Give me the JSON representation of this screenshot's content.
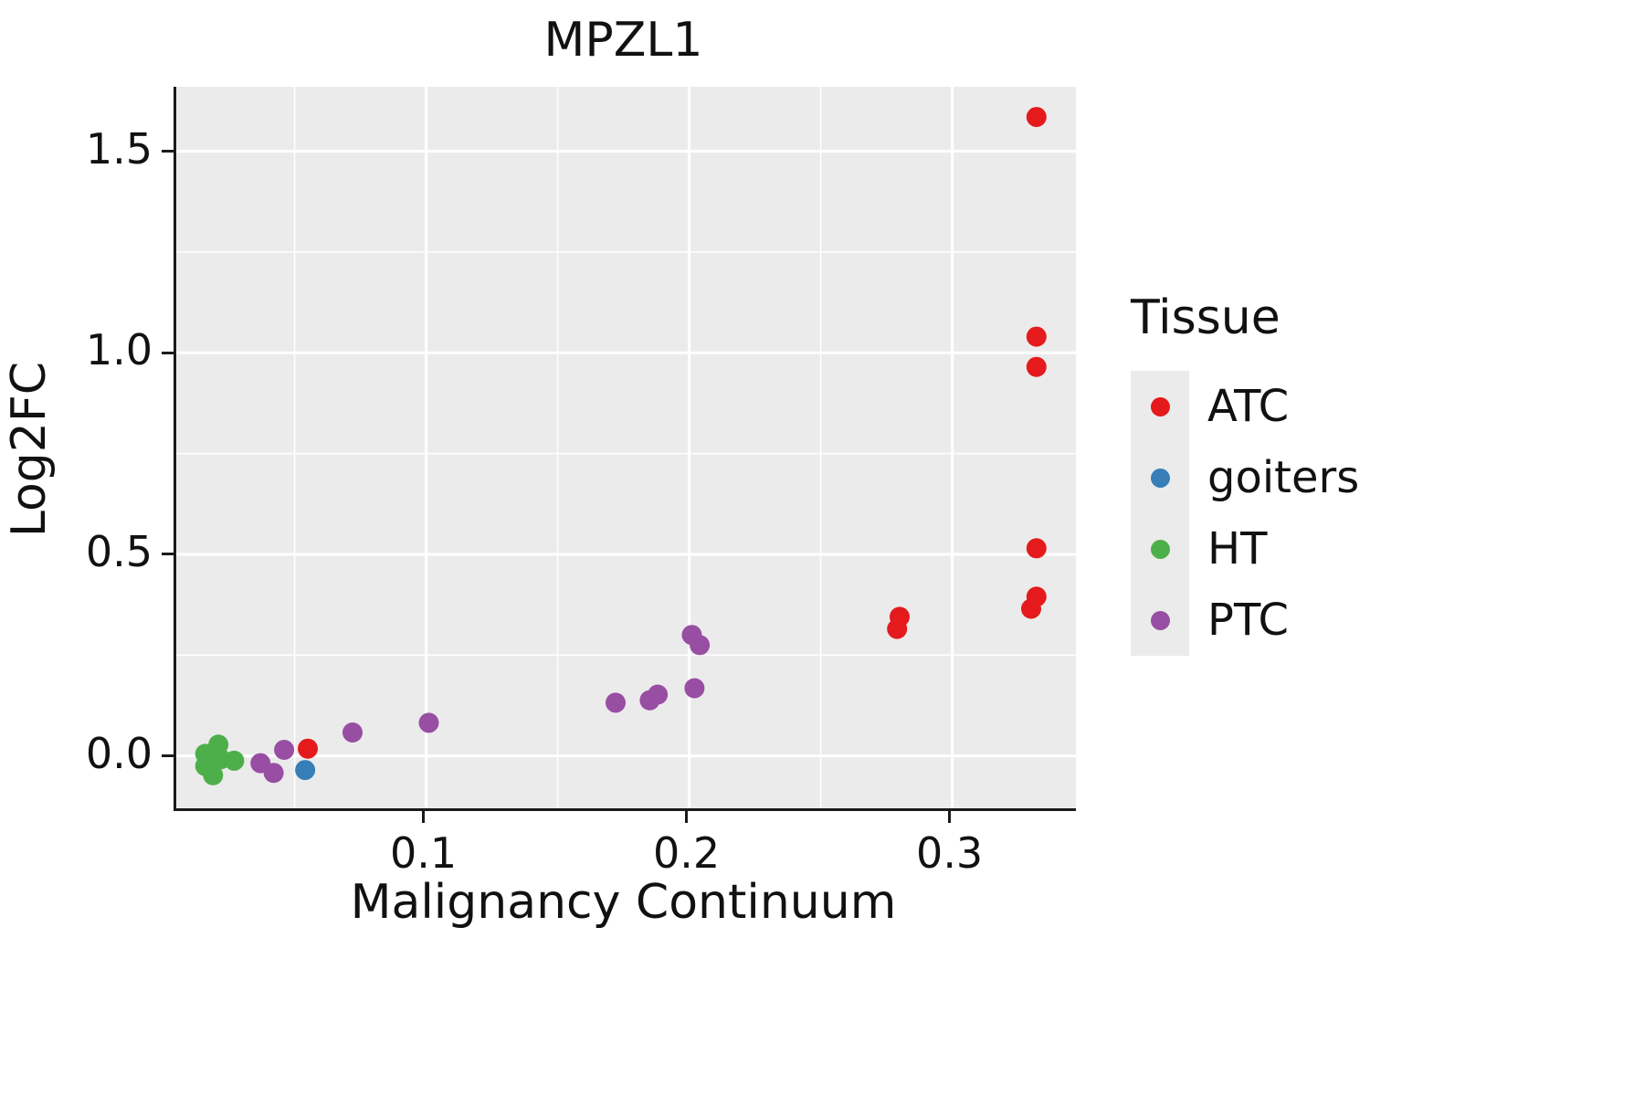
{
  "chart_data": {
    "type": "scatter",
    "title": "MPZL1",
    "xlabel": "Malignancy Continuum",
    "ylabel": "Log2FC",
    "xlim": [
      0.005,
      0.347
    ],
    "ylim": [
      -0.13,
      1.66
    ],
    "x_ticks": [
      0.1,
      0.2,
      0.3
    ],
    "x_tick_labels": [
      "0.1",
      "0.2",
      "0.3"
    ],
    "x_minor_ticks": [
      0.05,
      0.15,
      0.25
    ],
    "y_ticks": [
      0.0,
      0.5,
      1.0,
      1.5
    ],
    "y_tick_labels": [
      "0.0",
      "0.5",
      "1.0",
      "1.5"
    ],
    "y_minor_ticks": [
      0.25,
      0.75,
      1.25
    ],
    "grid": true,
    "panel_background": "#EBEBEB",
    "gridline_color": "#FFFFFF",
    "legend_title": "Tissue",
    "legend_position": "right",
    "series": [
      {
        "name": "ATC",
        "color": "#E41A1C",
        "points": [
          [
            0.332,
            1.585
          ],
          [
            0.332,
            1.04
          ],
          [
            0.332,
            0.965
          ],
          [
            0.332,
            0.515
          ],
          [
            0.332,
            0.395
          ],
          [
            0.33,
            0.365
          ],
          [
            0.28,
            0.345
          ],
          [
            0.279,
            0.315
          ],
          [
            0.055,
            0.018
          ]
        ]
      },
      {
        "name": "goiters",
        "color": "#377EB8",
        "points": [
          [
            0.054,
            -0.035
          ]
        ]
      },
      {
        "name": "HT",
        "color": "#4DAF4A",
        "points": [
          [
            0.016,
            0.005
          ],
          [
            0.016,
            -0.025
          ],
          [
            0.021,
            0.028
          ],
          [
            0.019,
            -0.048
          ],
          [
            0.022,
            -0.008
          ],
          [
            0.027,
            -0.012
          ]
        ]
      },
      {
        "name": "PTC",
        "color": "#984EA3",
        "points": [
          [
            0.037,
            -0.018
          ],
          [
            0.042,
            -0.042
          ],
          [
            0.046,
            0.015
          ],
          [
            0.072,
            0.058
          ],
          [
            0.101,
            0.082
          ],
          [
            0.172,
            0.132
          ],
          [
            0.185,
            0.138
          ],
          [
            0.188,
            0.152
          ],
          [
            0.202,
            0.168
          ],
          [
            0.201,
            0.3
          ],
          [
            0.204,
            0.275
          ]
        ]
      }
    ]
  }
}
